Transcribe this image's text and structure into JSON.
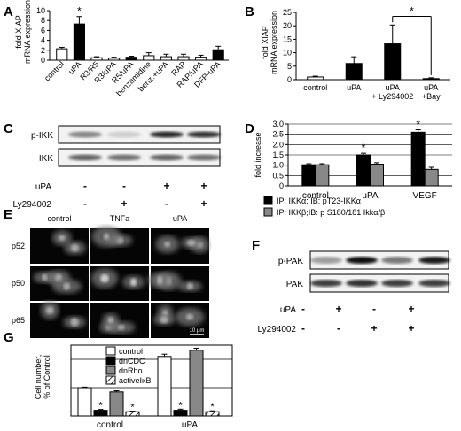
{
  "figure": {
    "panels": {
      "A": {
        "letter": "A"
      },
      "B": {
        "letter": "B"
      },
      "C": {
        "letter": "C"
      },
      "D": {
        "letter": "D"
      },
      "E": {
        "letter": "E"
      },
      "F": {
        "letter": "F"
      },
      "G": {
        "letter": "G"
      }
    }
  },
  "chart_data": [
    {
      "id": "A",
      "type": "bar",
      "ylabel": "fold XIAP\nmRNA expression",
      "ylim": [
        0,
        10
      ],
      "yticks": [
        "0",
        "2",
        "4",
        "6",
        "8",
        "10"
      ],
      "categories": [
        "control",
        "uPA",
        "R3/R5",
        "R3/uPA",
        "R5/uPA",
        "benzamidine",
        "benz.+uPA",
        "RAP",
        "RAP/uPA",
        "DFP-uPA"
      ],
      "values": [
        2.3,
        7.3,
        0.5,
        0.4,
        0.6,
        0.9,
        0.7,
        0.7,
        0.6,
        2.1
      ],
      "errors": [
        0.3,
        1.5,
        0.2,
        0.2,
        0.2,
        0.6,
        0.5,
        0.5,
        0.4,
        0.7
      ],
      "colors": [
        "#ffffff",
        "#000000",
        "#ffffff",
        "#ffffff",
        "#000000",
        "#ffffff",
        "#ffffff",
        "#ffffff",
        "#ffffff",
        "#000000"
      ],
      "annotations": [
        {
          "category": "uPA",
          "text": "*"
        }
      ]
    },
    {
      "id": "B",
      "type": "bar",
      "ylabel": "fold XIAP\nmRNA expression",
      "ylim": [
        0,
        25
      ],
      "yticks": [
        "0",
        "5",
        "10",
        "15",
        "20",
        "25"
      ],
      "categories": [
        "control",
        "uPA",
        "uPA\n+ Ly294002",
        "uPA\n+Bay"
      ],
      "values": [
        1.0,
        6.0,
        13.3,
        0.4
      ],
      "errors": [
        0.3,
        2.5,
        7.0,
        0.3
      ],
      "colors": [
        "#ffffff",
        "#000000",
        "#000000",
        "#000000"
      ],
      "annotations": [
        {
          "text": "*",
          "bracket": [
            "uPA + Ly294002",
            "uPA +Bay"
          ]
        }
      ]
    },
    {
      "id": "D",
      "type": "bar",
      "ylabel": "fold increase",
      "ylim": [
        0,
        3.0
      ],
      "yticks": [
        "0",
        "0.5",
        "1.0",
        "1.5",
        "2.0",
        "2.5",
        "3.0"
      ],
      "categories": [
        "control",
        "uPA",
        "VEGF"
      ],
      "series": [
        {
          "name": "IP: IKKα; IB: pT23-IKKα",
          "color": "#000000",
          "values": [
            1.02,
            1.5,
            2.6
          ],
          "errors": [
            0.05,
            0.08,
            0.12
          ]
        },
        {
          "name": "IP: IKKβ;IB: p S180/181 Ikkα/β",
          "color": "#888888",
          "values": [
            1.02,
            1.05,
            0.8
          ],
          "errors": [
            0.05,
            0.07,
            0.1
          ]
        }
      ],
      "annotations": [
        {
          "category": "uPA",
          "text": "*"
        },
        {
          "category": "VEGF",
          "text": "*"
        }
      ]
    },
    {
      "id": "G",
      "type": "bar",
      "ylabel": "Cell number,\n% of Control",
      "ylim": [
        0,
        250
      ],
      "categories": [
        "control",
        "uPA"
      ],
      "series": [
        {
          "name": "control",
          "fill": "white",
          "values": [
            100,
            210
          ],
          "errors": [
            2,
            8
          ]
        },
        {
          "name": "dnCDC",
          "fill": "black",
          "values": [
            20,
            20
          ],
          "errors": [
            3,
            4
          ]
        },
        {
          "name": "dnRho",
          "fill": "gray",
          "values": [
            85,
            232
          ],
          "errors": [
            4,
            7
          ]
        },
        {
          "name": "activeIκB",
          "fill": "hatch",
          "values": [
            15,
            15
          ],
          "errors": [
            2,
            3
          ]
        }
      ],
      "annotations": [
        "*",
        "*",
        "*",
        "*"
      ]
    }
  ],
  "blots": {
    "C": {
      "rows": [
        "p-IKK",
        "IKK"
      ],
      "treatments": [
        {
          "label": "uPA",
          "values": [
            "-",
            "-",
            "+",
            "+"
          ]
        },
        {
          "label": "Ly294002",
          "values": [
            "-",
            "+",
            "-",
            "+"
          ]
        }
      ]
    },
    "F": {
      "rows": [
        "p-PAK",
        "PAK"
      ],
      "treatments": [
        {
          "label": "uPA",
          "values": [
            "-",
            "+",
            "-",
            "+"
          ]
        },
        {
          "label": "Ly294002",
          "values": [
            "-",
            "-",
            "+",
            "+"
          ]
        }
      ]
    }
  },
  "micrographs": {
    "E": {
      "columns": [
        "control",
        "TNFa",
        "uPA"
      ],
      "rows": [
        "p52",
        "p50",
        "p65"
      ],
      "scalebar": "10 μm"
    }
  }
}
